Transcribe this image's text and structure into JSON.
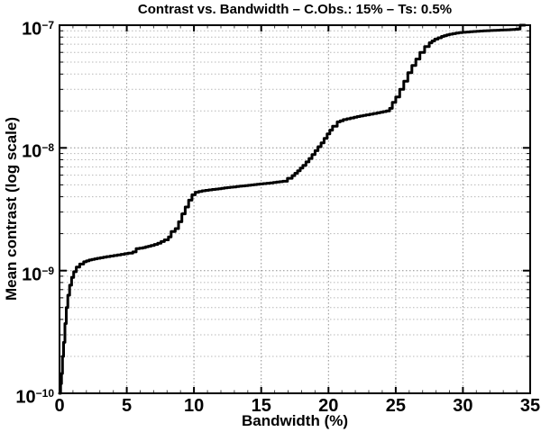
{
  "chart_data": {
    "type": "line",
    "title": "Contrast vs. Bandwidth – C.Obs.: 15% – Ts: 0.5%",
    "xlabel": "Bandwidth (%)",
    "ylabel": "Mean contrast (log scale)",
    "xlim": [
      0,
      35
    ],
    "ylog_range": [
      -10,
      -7
    ],
    "x_ticks": [
      0,
      5,
      10,
      15,
      20,
      25,
      30,
      35
    ],
    "x_minor_tick_step": 1,
    "y_ticks": [
      {
        "base": "10",
        "exp": "−10",
        "value": 1e-10
      },
      {
        "base": "10",
        "exp": "−9",
        "value": 1e-09
      },
      {
        "base": "10",
        "exp": "−8",
        "value": 1e-08
      },
      {
        "base": "10",
        "exp": "−7",
        "value": 1e-07
      }
    ],
    "grid": {
      "style": "dotted",
      "major": true,
      "minor_log_decades": true,
      "legend": "none"
    },
    "line_color": "#000000",
    "line_width": 3,
    "frame_color": "#000000",
    "major_grid_color": "#8f8f8f",
    "minor_grid_color": "#b8b8b8",
    "series": [
      {
        "name": "mean-contrast",
        "points": [
          [
            0.0,
            1e-10
          ],
          [
            0.08,
            1.2e-10
          ],
          [
            0.15,
            1.45e-10
          ],
          [
            0.22,
            2e-10
          ],
          [
            0.3,
            2.6e-10
          ],
          [
            0.4,
            3.7e-10
          ],
          [
            0.5,
            5e-10
          ],
          [
            0.62,
            6.3e-10
          ],
          [
            0.75,
            7.6e-10
          ],
          [
            0.9,
            8.8e-10
          ],
          [
            1.05,
            9.8e-10
          ],
          [
            1.25,
            1.07e-09
          ],
          [
            1.5,
            1.13e-09
          ],
          [
            1.8,
            1.18e-09
          ],
          [
            2.2,
            1.22e-09
          ],
          [
            2.8,
            1.26e-09
          ],
          [
            3.5,
            1.3e-09
          ],
          [
            4.3,
            1.34e-09
          ],
          [
            5.1,
            1.39e-09
          ],
          [
            5.45,
            1.42e-09
          ],
          [
            5.7,
            1.51e-09
          ],
          [
            6.2,
            1.54e-09
          ],
          [
            6.8,
            1.6e-09
          ],
          [
            7.3,
            1.67e-09
          ],
          [
            7.8,
            1.78e-09
          ],
          [
            8.1,
            1.88e-09
          ],
          [
            8.3,
            2.08e-09
          ],
          [
            8.6,
            2.2e-09
          ],
          [
            8.85,
            2.5e-09
          ],
          [
            9.1,
            2.9e-09
          ],
          [
            9.35,
            3.3e-09
          ],
          [
            9.6,
            3.75e-09
          ],
          [
            9.85,
            4.15e-09
          ],
          [
            10.1,
            4.35e-09
          ],
          [
            10.6,
            4.47e-09
          ],
          [
            11.6,
            4.62e-09
          ],
          [
            12.7,
            4.78e-09
          ],
          [
            13.8,
            4.93e-09
          ],
          [
            14.9,
            5.08e-09
          ],
          [
            15.9,
            5.22e-09
          ],
          [
            16.6,
            5.35e-09
          ],
          [
            16.95,
            5.65e-09
          ],
          [
            17.3,
            5.95e-09
          ],
          [
            17.7,
            6.5e-09
          ],
          [
            18.1,
            7.2e-09
          ],
          [
            18.55,
            8.2e-09
          ],
          [
            19.0,
            9.5e-09
          ],
          [
            19.45,
            1.1e-08
          ],
          [
            19.9,
            1.3e-08
          ],
          [
            20.3,
            1.5e-08
          ],
          [
            20.65,
            1.63e-08
          ],
          [
            21.1,
            1.7e-08
          ],
          [
            21.9,
            1.78e-08
          ],
          [
            22.8,
            1.86e-08
          ],
          [
            23.6,
            1.93e-08
          ],
          [
            24.3,
            2e-08
          ],
          [
            24.55,
            2.1e-08
          ],
          [
            24.75,
            2.35e-08
          ],
          [
            25.0,
            2.6e-08
          ],
          [
            25.3,
            3e-08
          ],
          [
            25.6,
            3.5e-08
          ],
          [
            25.9,
            4.1e-08
          ],
          [
            26.2,
            4.7e-08
          ],
          [
            26.5,
            5.3e-08
          ],
          [
            26.8,
            6e-08
          ],
          [
            27.15,
            6.7e-08
          ],
          [
            27.5,
            7.2e-08
          ],
          [
            27.9,
            7.7e-08
          ],
          [
            28.4,
            8.1e-08
          ],
          [
            29.0,
            8.45e-08
          ],
          [
            29.7,
            8.7e-08
          ],
          [
            30.5,
            8.85e-08
          ],
          [
            31.5,
            9e-08
          ],
          [
            32.5,
            9.1e-08
          ],
          [
            33.5,
            9.2e-08
          ],
          [
            34.1,
            9.3e-08
          ],
          [
            34.25,
            1e-07
          ],
          [
            34.6,
            1e-07
          ]
        ]
      }
    ]
  }
}
